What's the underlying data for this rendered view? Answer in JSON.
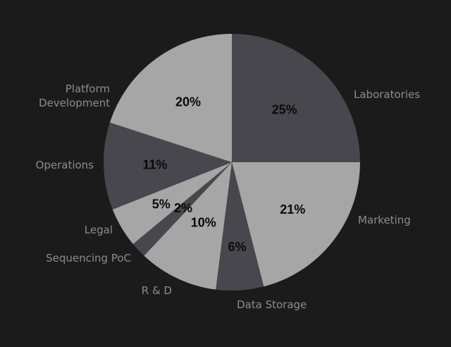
{
  "chart_data": {
    "type": "pie",
    "start_angle_deg": 0,
    "direction": "clockwise",
    "slices": [
      {
        "label": "Laboratories",
        "value": 25,
        "display": "25%",
        "color": "#48474d"
      },
      {
        "label": "Marketing",
        "value": 21,
        "display": "21%",
        "color": "#a6a6a6"
      },
      {
        "label": "Data Storage",
        "value": 6,
        "display": "6%",
        "color": "#48474d"
      },
      {
        "label": "R & D",
        "value": 10,
        "display": "10%",
        "color": "#a6a6a6"
      },
      {
        "label": "Sequencing PoC",
        "value": 2,
        "display": "2%",
        "color": "#48474d"
      },
      {
        "label": "Legal",
        "value": 5,
        "display": "5%",
        "color": "#a6a6a6"
      },
      {
        "label": "Operations",
        "value": 11,
        "display": "11%",
        "color": "#48474d"
      },
      {
        "label": "Platform Development",
        "value": 20,
        "display": "20%",
        "color": "#a6a6a6"
      }
    ],
    "background_color": "#1b1b1b",
    "label_text_color": "#8d8d8d",
    "value_text_color": "#0a0a0a"
  }
}
